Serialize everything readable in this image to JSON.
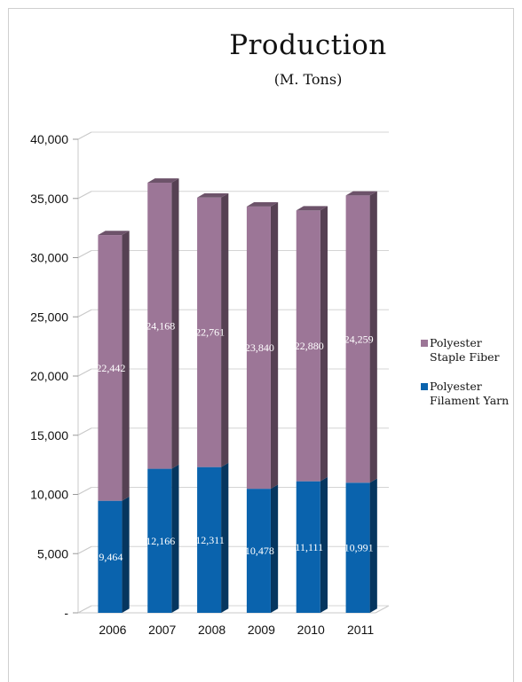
{
  "chart_data": {
    "type": "bar",
    "stacked": true,
    "three_d": true,
    "title": "Production",
    "subtitle": "(M. Tons)",
    "categories": [
      "2006",
      "2007",
      "2008",
      "2009",
      "2010",
      "2011"
    ],
    "series": [
      {
        "name": "Polyester Filament Yarn",
        "legend_lines": [
          "Polyester",
          "Filament Yarn"
        ],
        "color": "#0a63ad",
        "values": [
          9464,
          12166,
          12311,
          10478,
          11111,
          10991
        ],
        "labels": [
          "9,464",
          "12,166",
          "12,311",
          "10,478",
          "11,111",
          "10,991"
        ]
      },
      {
        "name": "Polyester Staple Fiber",
        "legend_lines": [
          "Polyester",
          "Staple Fiber"
        ],
        "color": "#9c7697",
        "values": [
          22442,
          24168,
          22761,
          23840,
          22880,
          24259
        ],
        "labels": [
          "22,442",
          "24,168",
          "22,761",
          "23,840",
          "22,880",
          "24,259"
        ]
      }
    ],
    "ylim": [
      0,
      40000
    ],
    "yticks": [
      0,
      5000,
      10000,
      15000,
      20000,
      25000,
      30000,
      35000,
      40000
    ],
    "ytick_labels": [
      "-",
      "5,000",
      "10,000",
      "15,000",
      "20,000",
      "25,000",
      "30,000",
      "35,000",
      "40,000"
    ],
    "grid": true,
    "legend": "right"
  }
}
